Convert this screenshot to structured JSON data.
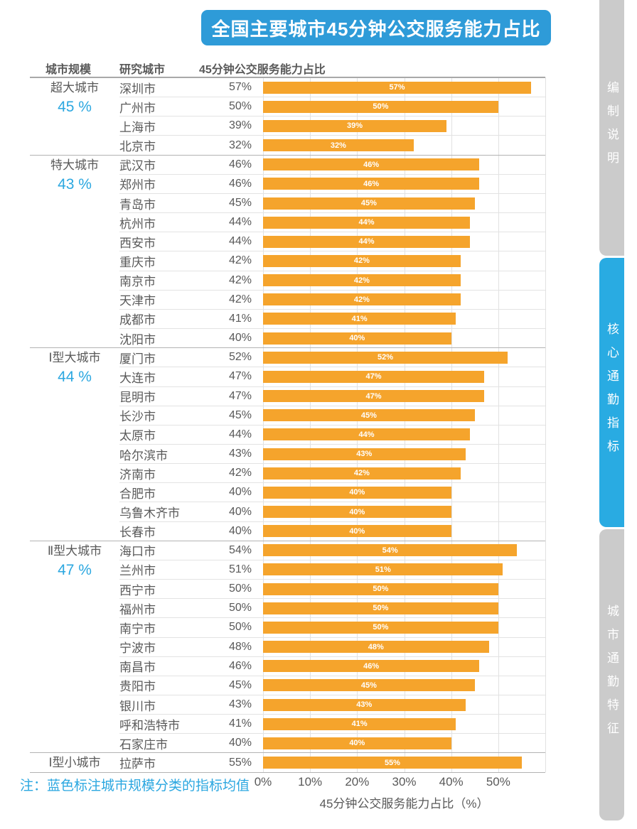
{
  "title": "全国主要城市45分钟公交服务能力占比",
  "columns": {
    "scale": "城市规模",
    "city": "研究城市",
    "value": "45分钟公交服务能力占比"
  },
  "note": "注：蓝色标注城市规模分类的指标均值",
  "sidebar": {
    "tabs": [
      {
        "label": "编制说明",
        "active": false
      },
      {
        "label": "核心通勤指标",
        "active": true
      },
      {
        "label": "城市通勤特征",
        "active": false
      }
    ]
  },
  "colors": {
    "banner_blue": "#2E9BD8",
    "accent_blue": "#2BA7E0",
    "bar_orange": "#F5A42C",
    "sidebar_gray": "#CBCBCB",
    "sidebar_blue": "#29ABE2",
    "text_gray": "#595959"
  },
  "chart_data": {
    "type": "bar",
    "orientation": "horizontal",
    "title": "全国主要城市45分钟公交服务能力占比",
    "xlabel": "45分钟公交服务能力占比（%）",
    "xlim": [
      0,
      60
    ],
    "xtick_labels": [
      "0%",
      "10%",
      "20%",
      "30%",
      "40%",
      "50%"
    ],
    "grid": true,
    "bar_color": "#F5A42C",
    "value_suffix": "%",
    "groups": [
      {
        "scale": "超大城市",
        "average": "45 %",
        "cities": [
          {
            "name": "深圳市",
            "value": 57
          },
          {
            "name": "广州市",
            "value": 50
          },
          {
            "name": "上海市",
            "value": 39
          },
          {
            "name": "北京市",
            "value": 32
          }
        ]
      },
      {
        "scale": "特大城市",
        "average": "43 %",
        "cities": [
          {
            "name": "武汉市",
            "value": 46
          },
          {
            "name": "郑州市",
            "value": 46
          },
          {
            "name": "青岛市",
            "value": 45
          },
          {
            "name": "杭州市",
            "value": 44
          },
          {
            "name": "西安市",
            "value": 44
          },
          {
            "name": "重庆市",
            "value": 42
          },
          {
            "name": "南京市",
            "value": 42
          },
          {
            "name": "天津市",
            "value": 42
          },
          {
            "name": "成都市",
            "value": 41
          },
          {
            "name": "沈阳市",
            "value": 40
          }
        ]
      },
      {
        "scale": "Ⅰ型大城市",
        "average": "44 %",
        "cities": [
          {
            "name": "厦门市",
            "value": 52
          },
          {
            "name": "大连市",
            "value": 47
          },
          {
            "name": "昆明市",
            "value": 47
          },
          {
            "name": "长沙市",
            "value": 45
          },
          {
            "name": "太原市",
            "value": 44
          },
          {
            "name": "哈尔滨市",
            "value": 43
          },
          {
            "name": "济南市",
            "value": 42
          },
          {
            "name": "合肥市",
            "value": 40
          },
          {
            "name": "乌鲁木齐市",
            "value": 40
          },
          {
            "name": "长春市",
            "value": 40
          }
        ]
      },
      {
        "scale": "Ⅱ型大城市",
        "average": "47 %",
        "cities": [
          {
            "name": "海口市",
            "value": 54
          },
          {
            "name": "兰州市",
            "value": 51
          },
          {
            "name": "西宁市",
            "value": 50
          },
          {
            "name": "福州市",
            "value": 50
          },
          {
            "name": "南宁市",
            "value": 50
          },
          {
            "name": "宁波市",
            "value": 48
          },
          {
            "name": "南昌市",
            "value": 46
          },
          {
            "name": "贵阳市",
            "value": 45
          },
          {
            "name": "银川市",
            "value": 43
          },
          {
            "name": "呼和浩特市",
            "value": 41
          },
          {
            "name": "石家庄市",
            "value": 40
          }
        ]
      },
      {
        "scale": "Ⅰ型小城市",
        "average": null,
        "cities": [
          {
            "name": "拉萨市",
            "value": 55
          }
        ]
      }
    ]
  }
}
